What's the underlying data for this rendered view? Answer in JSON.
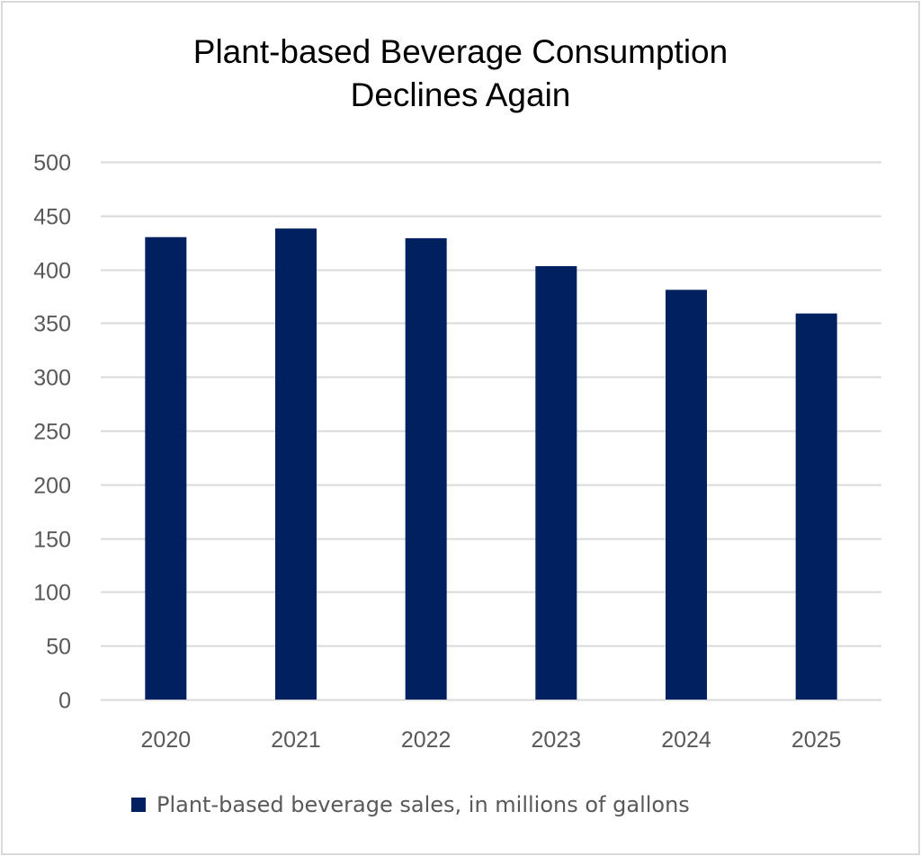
{
  "chart_data": {
    "type": "bar",
    "title": "Plant-based Beverage Consumption Declines Again",
    "title_lines": [
      "Plant-based Beverage Consumption",
      "Declines Again"
    ],
    "categories": [
      "2020",
      "2021",
      "2022",
      "2023",
      "2024",
      "2025"
    ],
    "series": [
      {
        "name": "Plant-based beverage sales, in millions of gallons",
        "values": [
          430,
          438,
          429,
          403,
          381,
          359
        ],
        "color": "#002060"
      }
    ],
    "xlabel": "",
    "ylabel": "",
    "ylim": [
      0,
      500
    ],
    "yticks": [
      0,
      50,
      100,
      150,
      200,
      250,
      300,
      350,
      400,
      450,
      500
    ],
    "grid": true,
    "legend_position": "bottom"
  },
  "colors": {
    "bar": "#002060",
    "grid": "#d9d9d9",
    "tick_text": "#595959",
    "border": "#d9d9d9"
  }
}
